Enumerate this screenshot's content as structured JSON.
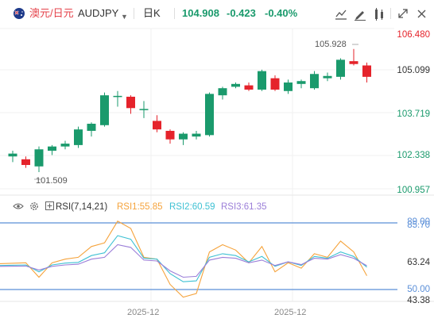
{
  "header": {
    "pair_name": "澳元/日元",
    "ticker": "AUDJPY",
    "period": "日K",
    "last_price": "104.908",
    "change": "-0.423",
    "change_pct": "-0.40%",
    "tools": [
      "draw-line-icon",
      "pen-icon",
      "indicator-settings-icon",
      "expand-icon",
      "close-icon"
    ]
  },
  "price_axis": [
    "106.480",
    "105.099",
    "103.719",
    "102.338",
    "100.957"
  ],
  "rsi_axis": [
    "89.00",
    "85.70",
    "63.24",
    "50.00",
    "43.38"
  ],
  "annotations": {
    "high": "105.928",
    "low": "101.509"
  },
  "rsi_panel": {
    "title": "RSI(7,14,21)",
    "rsi1": "RSI1:55.85",
    "rsi2": "RSI2:60.59",
    "rsi3": "RSI3:61.35"
  },
  "x_labels": [
    "2025-12",
    "2025-12"
  ],
  "colors": {
    "up": "#1a9a6c",
    "down": "#e5232b",
    "rsi1": "#f5a33c",
    "rsi2": "#3ec1d3",
    "rsi3": "#9b7ed8",
    "ref_line": "#5b8fd8"
  },
  "chart_data": {
    "type": "candlestick",
    "ylim": [
      100.957,
      106.48
    ],
    "candles": [
      {
        "o": 102.15,
        "h": 102.35,
        "l": 101.95,
        "c": 102.25
      },
      {
        "o": 102.05,
        "h": 102.15,
        "l": 101.75,
        "c": 101.85
      },
      {
        "o": 101.8,
        "h": 102.5,
        "l": 101.6,
        "c": 102.4
      },
      {
        "o": 102.35,
        "h": 102.55,
        "l": 102.2,
        "c": 102.5
      },
      {
        "o": 102.5,
        "h": 102.7,
        "l": 102.4,
        "c": 102.6
      },
      {
        "o": 102.55,
        "h": 103.2,
        "l": 102.45,
        "c": 103.1
      },
      {
        "o": 103.05,
        "h": 103.35,
        "l": 102.85,
        "c": 103.3
      },
      {
        "o": 103.25,
        "h": 104.4,
        "l": 103.2,
        "c": 104.3
      },
      {
        "o": 104.25,
        "h": 104.45,
        "l": 103.9,
        "c": 104.28
      },
      {
        "o": 104.25,
        "h": 104.3,
        "l": 103.65,
        "c": 103.85
      },
      {
        "o": 103.8,
        "h": 104.1,
        "l": 103.5,
        "c": 103.82
      },
      {
        "o": 103.4,
        "h": 103.6,
        "l": 103.0,
        "c": 103.1
      },
      {
        "o": 103.05,
        "h": 103.1,
        "l": 102.6,
        "c": 102.75
      },
      {
        "o": 102.75,
        "h": 103.0,
        "l": 102.55,
        "c": 102.95
      },
      {
        "o": 102.85,
        "h": 103.05,
        "l": 102.75,
        "c": 102.95
      },
      {
        "o": 102.9,
        "h": 104.4,
        "l": 102.85,
        "c": 104.35
      },
      {
        "o": 104.3,
        "h": 104.6,
        "l": 104.15,
        "c": 104.55
      },
      {
        "o": 104.6,
        "h": 104.75,
        "l": 104.55,
        "c": 104.7
      },
      {
        "o": 104.65,
        "h": 104.75,
        "l": 104.45,
        "c": 104.5
      },
      {
        "o": 104.5,
        "h": 105.2,
        "l": 104.45,
        "c": 105.15
      },
      {
        "o": 104.9,
        "h": 105.0,
        "l": 104.45,
        "c": 104.5
      },
      {
        "o": 104.45,
        "h": 104.85,
        "l": 104.35,
        "c": 104.75
      },
      {
        "o": 104.7,
        "h": 104.85,
        "l": 104.55,
        "c": 104.8
      },
      {
        "o": 104.55,
        "h": 105.15,
        "l": 104.5,
        "c": 105.05
      },
      {
        "o": 104.9,
        "h": 105.1,
        "l": 104.8,
        "c": 104.98
      },
      {
        "o": 104.95,
        "h": 105.6,
        "l": 104.85,
        "c": 105.55
      },
      {
        "o": 105.5,
        "h": 105.93,
        "l": 105.35,
        "c": 105.4
      },
      {
        "o": 105.35,
        "h": 105.45,
        "l": 104.75,
        "c": 104.95
      }
    ],
    "rsi_ylim": [
      43.38,
      89.0
    ],
    "rsi_series": [
      {
        "name": "RSI1",
        "values": [
          62.5,
          63.0,
          55.0,
          63.0,
          65.0,
          66.0,
          72.0,
          74.0,
          86.0,
          82.0,
          66.0,
          65.0,
          51.0,
          44.0,
          46.0,
          69.0,
          73.0,
          70.0,
          63.0,
          72.0,
          58.0,
          63.0,
          60.0,
          68.0,
          66.0,
          75.0,
          69.0,
          55.85
        ]
      },
      {
        "name": "RSI2",
        "values": [
          61.5,
          61.8,
          58.0,
          61.8,
          62.8,
          63.2,
          67.0,
          68.5,
          78.0,
          76.0,
          65.5,
          65.0,
          57.0,
          52.5,
          53.0,
          66.0,
          68.0,
          67.0,
          63.5,
          66.5,
          61.0,
          63.5,
          61.5,
          66.5,
          65.5,
          69.0,
          66.5,
          60.59
        ]
      },
      {
        "name": "RSI3",
        "values": [
          61.0,
          61.2,
          59.0,
          61.0,
          61.8,
          62.2,
          65.0,
          66.0,
          73.0,
          71.5,
          64.5,
          64.0,
          58.5,
          55.0,
          55.5,
          64.5,
          66.0,
          65.5,
          63.0,
          64.5,
          61.5,
          63.5,
          62.0,
          65.5,
          65.0,
          67.5,
          65.5,
          61.35
        ]
      }
    ],
    "rsi_ref_levels": [
      85.7,
      50.0
    ]
  }
}
